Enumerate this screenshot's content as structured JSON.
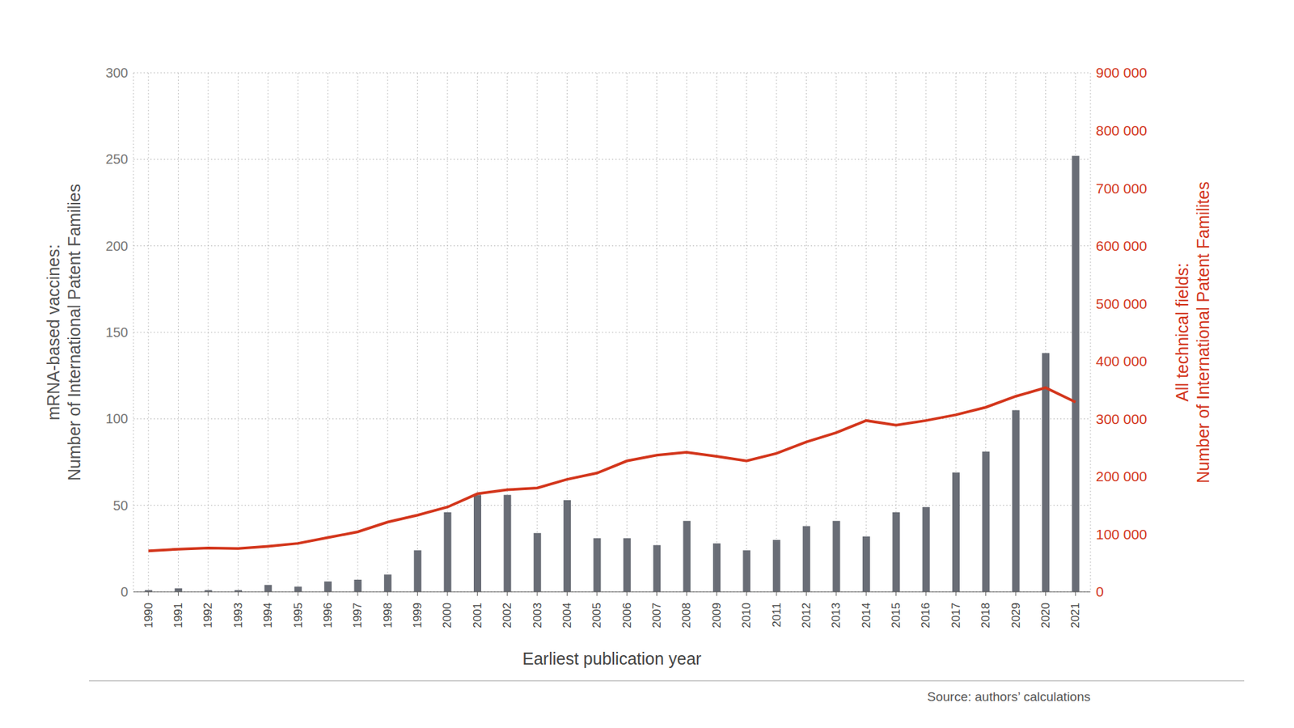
{
  "chart_data": {
    "type": "bar",
    "xlabel": "Earliest publication year",
    "ylabel": [
      "mRNA-based vaccines:",
      "Number of International Patent Families"
    ],
    "y2label": [
      "All technical fields:",
      "Number of International Patent Familites"
    ],
    "source": "Source: authors’ calculations",
    "categories": [
      "1990",
      "1991",
      "1992",
      "1993",
      "1994",
      "1995",
      "1996",
      "1997",
      "1998",
      "1999",
      "2000",
      "2001",
      "2002",
      "2003",
      "2004",
      "2005",
      "2006",
      "2007",
      "2008",
      "2009",
      "2010",
      "2011",
      "2012",
      "2013",
      "2014",
      "2015",
      "2016",
      "2017",
      "2018",
      "2029",
      "2020",
      "2021"
    ],
    "series": [
      {
        "type": "bar",
        "color": "#696d76",
        "values": [
          1,
          2,
          1,
          1,
          4,
          3,
          6,
          7,
          10,
          24,
          46,
          56,
          56,
          34,
          53,
          31,
          31,
          27,
          41,
          28,
          24,
          30,
          38,
          41,
          32,
          46,
          49,
          69,
          81,
          105,
          138,
          252
        ]
      },
      {
        "type": "line",
        "color": "#d3361c",
        "axis": "y2",
        "values": [
          71000,
          74000,
          76000,
          75000,
          79000,
          84000,
          94000,
          104000,
          121000,
          133000,
          147000,
          170000,
          177000,
          180000,
          195000,
          206000,
          227000,
          237000,
          242000,
          235000,
          227000,
          240000,
          260000,
          276000,
          297000,
          289000,
          297000,
          307000,
          320000,
          339000,
          354000,
          329000
        ]
      }
    ],
    "ylim": [
      0,
      300
    ],
    "yticks": [
      0,
      50,
      100,
      150,
      200,
      250,
      300
    ],
    "y2lim": [
      0,
      900000
    ],
    "y2ticks": [
      0,
      {
        "value": 100000,
        "label": "100 000"
      },
      {
        "value": 200000,
        "label": "200 000"
      },
      {
        "value": 300000,
        "label": "300 000"
      },
      {
        "value": 400000,
        "label": "400 000"
      },
      {
        "value": 500000,
        "label": "500 000"
      },
      {
        "value": 600000,
        "label": "600 000"
      },
      {
        "value": 700000,
        "label": "700 000"
      },
      {
        "value": 800000,
        "label": "800 000"
      },
      {
        "value": 900000,
        "label": "900 000"
      }
    ],
    "grid": true
  }
}
